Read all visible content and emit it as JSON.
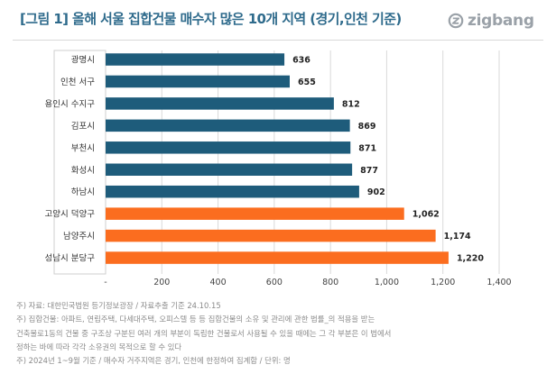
{
  "title": "[그림 1] 올해 서울 집합건물 매수자 많은 10개 지역 (경기,인천 기준)",
  "logo_text": "zigbang",
  "colors": {
    "title": "#2f6b8c",
    "bar_primary": "#1e5c7b",
    "bar_highlight": "#fb6d1f",
    "grid": "#d9d9d9",
    "logo": "#9aa1a8"
  },
  "chart_data": {
    "type": "bar",
    "orientation": "horizontal",
    "categories": [
      "광명시",
      "인천 서구",
      "용인시 수지구",
      "김포시",
      "부천시",
      "화성시",
      "하남시",
      "고양시 덕양구",
      "남양주시",
      "성남시 분당구"
    ],
    "values": [
      636,
      655,
      812,
      869,
      871,
      877,
      902,
      1062,
      1174,
      1220
    ],
    "value_labels": [
      "636",
      "655",
      "812",
      "869",
      "871",
      "877",
      "902",
      "1,062",
      "1,174",
      "1,220"
    ],
    "highlight": [
      false,
      false,
      false,
      false,
      false,
      false,
      false,
      true,
      true,
      true
    ],
    "xlim": [
      0,
      1400
    ],
    "x_ticks": [
      0,
      200,
      400,
      600,
      800,
      1000,
      1200,
      1400
    ],
    "x_tick_labels": [
      "-",
      "200",
      "400",
      "600",
      "800",
      "1,000",
      "1,200",
      "1,400"
    ],
    "grid": "vertical",
    "legend": "none"
  },
  "notes": [
    "주) 자료: 대한민국법원 등기정보광장 / 자료추출 기준 24.10.15",
    "주) 집합건물: 아파트, 연립주택, 다세대주택, 오피스텔 등 등  집합건물의 소유 및 관리에 관한 법률_의 적용을 받는",
    "건축물로1동의 건물 중 구조상 구분된 여러 개의 부분이 독립한 건물로서 사용될 수 있을 때에는 그 각 부분은 이 법에서",
    "정하는 바에 따라 각각 소유권의 목적으로 할 수 있다",
    "주) 2024년 1~9월 기준 / 매수자 거주지역은 경기, 인천에 한정하여 집계함 / 단위: 명"
  ]
}
